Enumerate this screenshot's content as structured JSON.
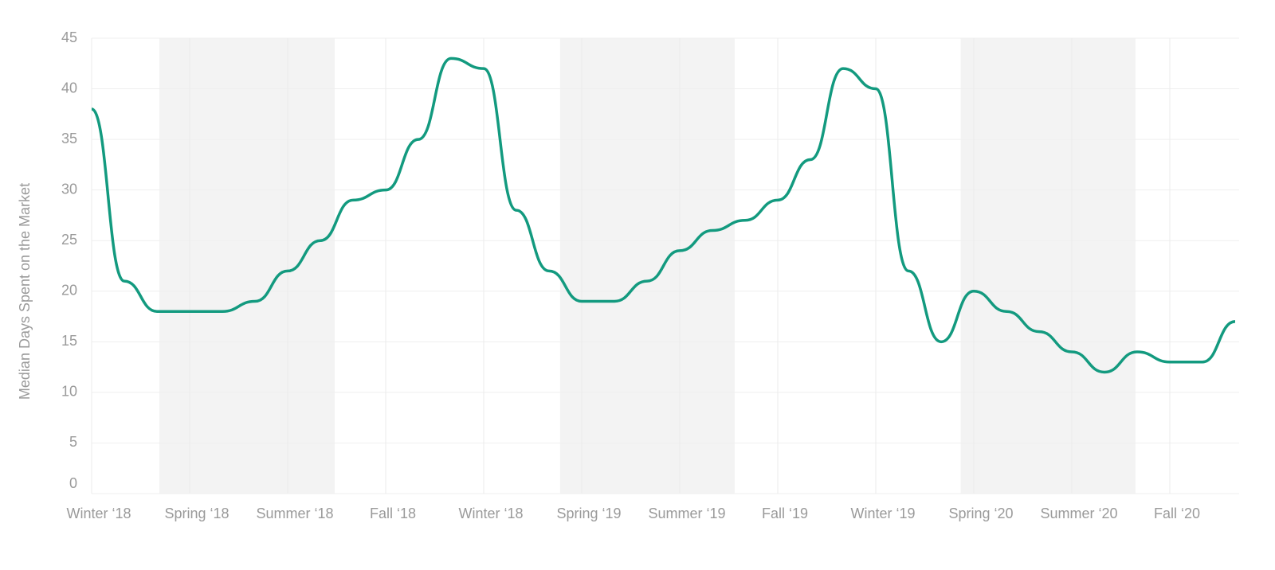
{
  "chart_data": {
    "type": "line",
    "y_label": "Median Days Spent on the Market",
    "x": [
      0,
      1,
      2,
      3,
      4,
      5,
      6,
      7,
      8,
      9,
      10,
      11,
      12,
      13,
      14,
      15,
      16,
      17,
      18,
      19,
      20,
      21,
      22,
      23,
      24,
      25,
      26,
      27,
      28,
      29,
      30,
      31,
      32,
      33,
      34,
      35
    ],
    "series": [
      {
        "color": "#139a7f",
        "values": [
          38,
          21,
          18,
          18,
          18,
          19,
          22,
          25,
          29,
          30,
          35,
          43,
          42,
          28,
          22,
          19,
          19,
          21,
          24,
          26,
          27,
          29,
          33,
          42,
          40,
          22,
          15,
          20,
          18,
          16,
          14,
          12,
          14,
          13,
          13,
          17
        ]
      }
    ],
    "xlim": [
      0,
      35
    ],
    "xticks": [
      {
        "value": 0,
        "label": "Winter ‘18"
      },
      {
        "value": 3,
        "label": "Spring ‘18"
      },
      {
        "value": 6,
        "label": "Summer ‘18"
      },
      {
        "value": 9,
        "label": "Fall ‘18"
      },
      {
        "value": 12,
        "label": "Winter ‘18"
      },
      {
        "value": 15,
        "label": "Spring ‘19"
      },
      {
        "value": 18,
        "label": "Summer ‘19"
      },
      {
        "value": 21,
        "label": "Fall ‘19"
      },
      {
        "value": 24,
        "label": "Winter ‘19"
      },
      {
        "value": 27,
        "label": "Spring ‘20"
      },
      {
        "value": 30,
        "label": "Summer ‘20"
      },
      {
        "value": 33,
        "label": "Fall ‘20"
      }
    ],
    "ylim": [
      0,
      45
    ],
    "yticks": [
      0,
      5,
      10,
      15,
      20,
      25,
      30,
      35,
      40,
      45
    ],
    "shaded_bands": [
      [
        2.07,
        7.44
      ],
      [
        14.34,
        19.68
      ],
      [
        26.6,
        31.95
      ]
    ],
    "band_color": "#f3f3f3",
    "grid": true
  }
}
